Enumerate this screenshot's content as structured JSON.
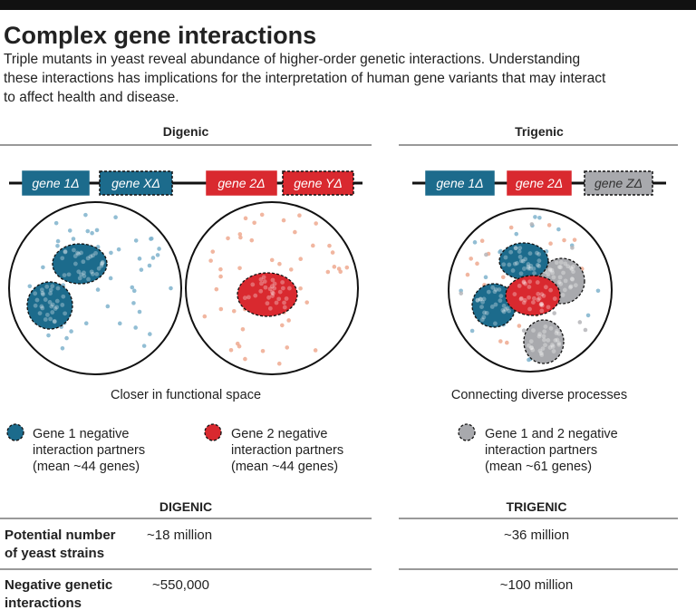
{
  "header": {
    "title": "Complex gene interactions",
    "subtitle": [
      "Triple mutants in yeast reveal abundance of higher-order genetic interactions. Understanding",
      "these interactions has implications for the interpretation of human gene variants that may interact",
      "to affect health and disease."
    ]
  },
  "panels": [
    {
      "heading": "Digenic",
      "genes": [
        "gene 1Δ",
        "gene XΔ",
        "gene 2Δ",
        "gene YΔ"
      ],
      "caption": "Closer in functional space"
    },
    {
      "heading": "Trigenic",
      "genes": [
        "gene 1Δ",
        "gene 2Δ",
        "gene ZΔ"
      ],
      "caption": "Connecting diverse processes"
    }
  ],
  "legend": [
    [
      "Gene 1 negative",
      "interaction partners",
      "(mean ~44 genes)"
    ],
    [
      "Gene 2 negative",
      "interaction partners",
      "(mean ~44 genes)"
    ],
    [
      "Gene 1 and 2 negative",
      "interaction partners",
      "(mean ~61 genes)"
    ]
  ],
  "table": {
    "columns": [
      "DIGENIC",
      "TRIGENIC"
    ],
    "rows": [
      {
        "label": [
          "Potential number",
          "of yeast strains"
        ],
        "cells": [
          "~18 million",
          "~36 million"
        ]
      },
      {
        "label": [
          "Negative genetic",
          "interactions"
        ],
        "cells": [
          "~550,000",
          "~100 million"
        ]
      }
    ]
  }
}
